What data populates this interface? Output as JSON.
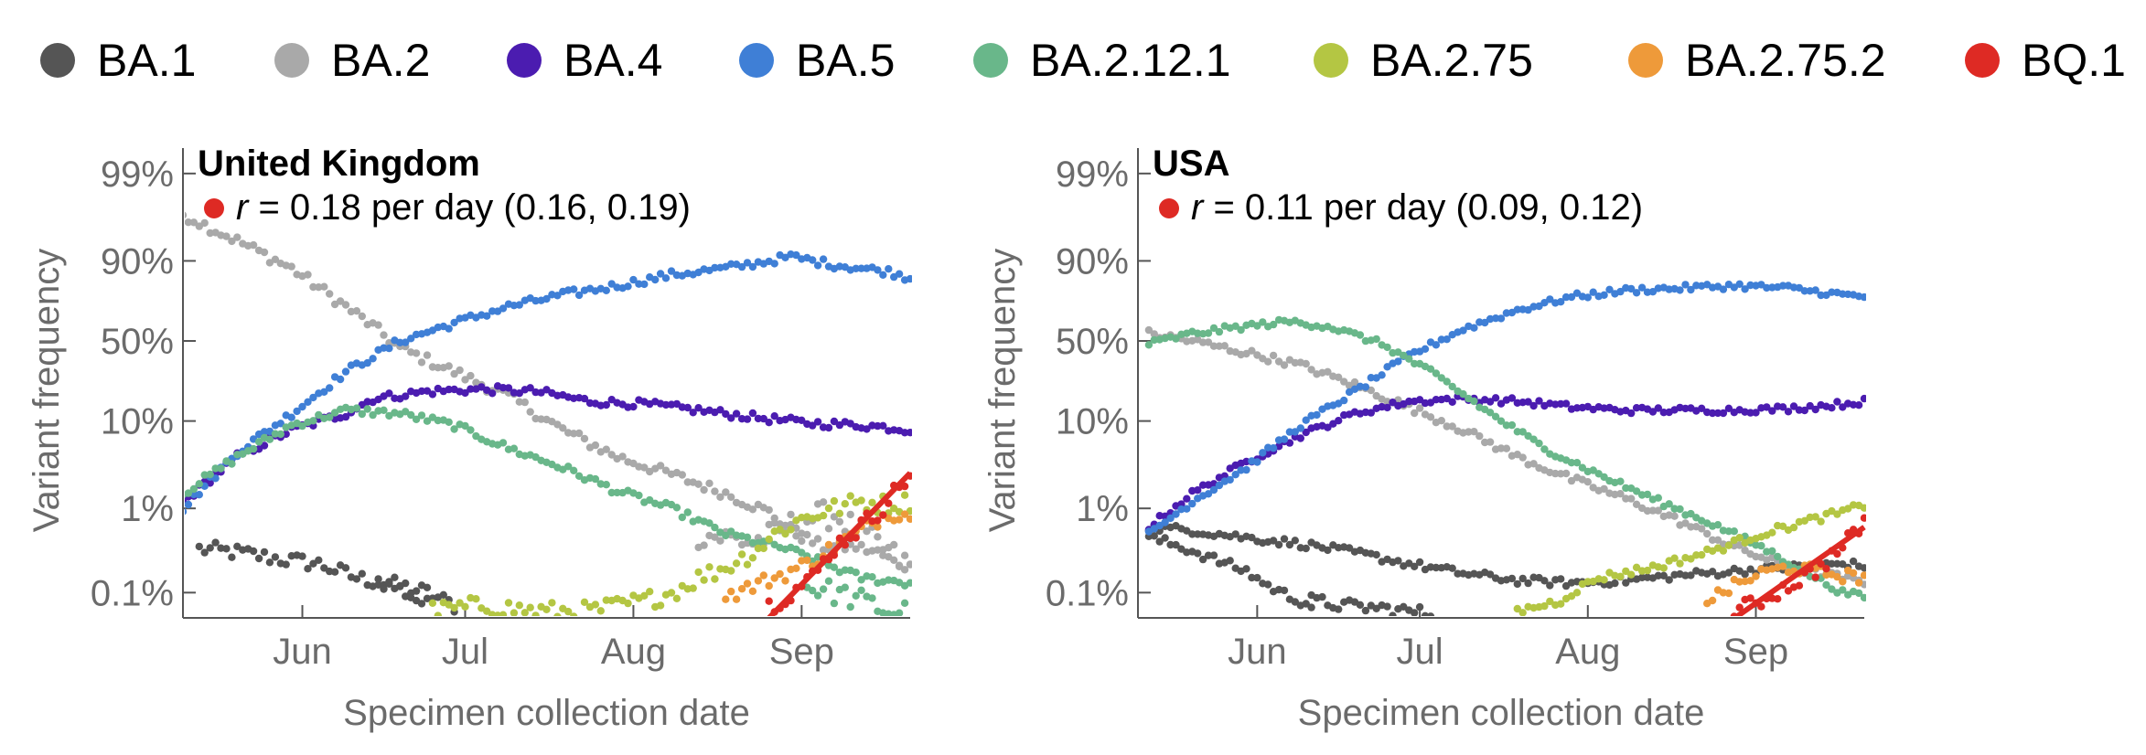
{
  "legend": [
    {
      "name": "BA.1",
      "color": "#555555"
    },
    {
      "name": "BA.2",
      "color": "#a9a9a9"
    },
    {
      "name": "BA.4",
      "color": "#4b1cb0"
    },
    {
      "name": "BA.5",
      "color": "#3f7fd6"
    },
    {
      "name": "BA.2.12.1",
      "color": "#69b78a"
    },
    {
      "name": "BA.2.75",
      "color": "#b4c643"
    },
    {
      "name": "BA.2.75.2",
      "color": "#ee9a3a"
    },
    {
      "name": "BQ.1",
      "color": "#de2a24"
    }
  ],
  "chart_data": [
    {
      "type": "scatter",
      "title": "United Kingdom",
      "annotation": {
        "symbol": "r",
        "text": " = 0.18 per day (0.16, 0.19)",
        "color": "#de2a24"
      },
      "xlabel": "Specimen collection date",
      "ylabel": "Variant frequency",
      "yscale": "logit",
      "x_ticks": [
        "Jun",
        "Jul",
        "Aug",
        "Sep"
      ],
      "y_ticks": [
        "99%",
        "90%",
        "50%",
        "10%",
        "1%",
        "0.1%"
      ],
      "x_range_days": [
        0,
        134
      ],
      "y_range_percent": [
        0.05,
        99.5
      ],
      "series": [
        {
          "name": "BA.1",
          "noise": 0.1,
          "points": [
            [
              3,
              0.33
            ],
            [
              10,
              0.3
            ],
            [
              18,
              0.25
            ],
            [
              25,
              0.22
            ],
            [
              32,
              0.15
            ],
            [
              40,
              0.12
            ],
            [
              45,
              0.1
            ],
            [
              50,
              0.07
            ]
          ]
        },
        {
          "name": "BA.1",
          "noise": 0.1,
          "points": [
            [
              36,
              0.14
            ],
            [
              40,
              0.11
            ],
            [
              45,
              0.07
            ]
          ]
        },
        {
          "name": "BA.2",
          "noise": 0.07,
          "points": [
            [
              0,
              97
            ],
            [
              10,
              94
            ],
            [
              20,
              88
            ],
            [
              30,
              72
            ],
            [
              35,
              60
            ],
            [
              40,
              45
            ],
            [
              50,
              30
            ],
            [
              60,
              18
            ],
            [
              70,
              8
            ],
            [
              80,
              4
            ],
            [
              90,
              2.5
            ],
            [
              100,
              1.5
            ],
            [
              108,
              0.9
            ],
            [
              113,
              0.5
            ],
            [
              118,
              0.35
            ],
            [
              124,
              0.35
            ],
            [
              128,
              0.3
            ],
            [
              131,
              0.23
            ],
            [
              134,
              0.2
            ]
          ]
        },
        {
          "name": "BA.2",
          "noise": 0.18,
          "points": [
            [
              95,
              0.5
            ],
            [
              100,
              0.45
            ],
            [
              105,
              0.4
            ],
            [
              110,
              0.5
            ],
            [
              113,
              0.7
            ],
            [
              117,
              0.8
            ],
            [
              120,
              0.85
            ],
            [
              125,
              0.5
            ],
            [
              130,
              0.3
            ],
            [
              134,
              0.2
            ]
          ]
        },
        {
          "name": "BA.4",
          "noise": 0.05,
          "points": [
            [
              0,
              1.2
            ],
            [
              10,
              4
            ],
            [
              20,
              8
            ],
            [
              30,
              12
            ],
            [
              35,
              17
            ],
            [
              45,
              20
            ],
            [
              55,
              21
            ],
            [
              65,
              20
            ],
            [
              75,
              16
            ],
            [
              85,
              15
            ],
            [
              95,
              13
            ],
            [
              105,
              11
            ],
            [
              115,
              9.5
            ],
            [
              125,
              9
            ],
            [
              130,
              8.5
            ],
            [
              134,
              8
            ]
          ]
        },
        {
          "name": "BA.5",
          "noise": 0.05,
          "points": [
            [
              0,
              1
            ],
            [
              10,
              4.5
            ],
            [
              20,
              12
            ],
            [
              30,
              30
            ],
            [
              40,
              50
            ],
            [
              50,
              62
            ],
            [
              60,
              72
            ],
            [
              70,
              78
            ],
            [
              80,
              82
            ],
            [
              90,
              86
            ],
            [
              100,
              88
            ],
            [
              108,
              90
            ],
            [
              112,
              91
            ],
            [
              120,
              89
            ],
            [
              130,
              87
            ],
            [
              134,
              85
            ]
          ]
        },
        {
          "name": "BA.2.12.1",
          "noise": 0.05,
          "points": [
            [
              0,
              1.5
            ],
            [
              10,
              4
            ],
            [
              20,
              9
            ],
            [
              30,
              13
            ],
            [
              40,
              12
            ],
            [
              50,
              9
            ],
            [
              60,
              5
            ],
            [
              70,
              3
            ],
            [
              80,
              1.6
            ],
            [
              90,
              1
            ],
            [
              100,
              0.5
            ],
            [
              110,
              0.35
            ],
            [
              115,
              0.27
            ],
            [
              120,
              0.2
            ],
            [
              125,
              0.15
            ],
            [
              134,
              0.13
            ]
          ]
        },
        {
          "name": "BA.2.12.1",
          "noise": 0.15,
          "points": [
            [
              115,
              0.12
            ],
            [
              120,
              0.1
            ],
            [
              125,
              0.08
            ],
            [
              130,
              0.06
            ],
            [
              134,
              0.06
            ]
          ]
        },
        {
          "name": "BA.2.75",
          "noise": 0.12,
          "points": [
            [
              46,
              0.06
            ],
            [
              55,
              0.07
            ],
            [
              65,
              0.06
            ],
            [
              75,
              0.06
            ],
            [
              85,
              0.08
            ],
            [
              90,
              0.1
            ],
            [
              95,
              0.15
            ],
            [
              100,
              0.2
            ],
            [
              105,
              0.3
            ],
            [
              110,
              0.55
            ],
            [
              115,
              0.8
            ],
            [
              120,
              1
            ],
            [
              125,
              1.2
            ],
            [
              130,
              1.1
            ],
            [
              134,
              1.2
            ]
          ]
        },
        {
          "name": "BA.2.75.2",
          "noise": 0.1,
          "points": [
            [
              100,
              0.09
            ],
            [
              105,
              0.12
            ],
            [
              110,
              0.16
            ],
            [
              115,
              0.22
            ],
            [
              120,
              0.35
            ],
            [
              125,
              0.55
            ],
            [
              130,
              0.9
            ],
            [
              134,
              0.85
            ]
          ]
        },
        {
          "name": "BQ.1",
          "noise": 0.12,
          "points": [
            [
              108,
              0.07
            ],
            [
              112,
              0.1
            ],
            [
              116,
              0.15
            ],
            [
              120,
              0.35
            ],
            [
              124,
              0.55
            ],
            [
              128,
              0.9
            ],
            [
              132,
              1.8
            ],
            [
              134,
              2.5
            ]
          ]
        }
      ],
      "fit": {
        "name": "BQ.1",
        "color": "#de2a24",
        "points": [
          [
            108,
            0.05
          ],
          [
            134,
            2.6
          ]
        ]
      }
    },
    {
      "type": "scatter",
      "title": "USA",
      "annotation": {
        "symbol": "r",
        "text": " = 0.11 per day (0.09, 0.12)",
        "color": "#de2a24"
      },
      "xlabel": "Specimen collection date",
      "ylabel": "Variant frequency",
      "yscale": "logit",
      "x_ticks": [
        "Jun",
        "Jul",
        "Aug",
        "Sep"
      ],
      "y_ticks": [
        "99%",
        "90%",
        "50%",
        "10%",
        "1%",
        "0.1%"
      ],
      "x_range_days": [
        0,
        134
      ],
      "y_range_percent": [
        0.05,
        99.5
      ],
      "series": [
        {
          "name": "BA.1",
          "noise": 0.06,
          "points": [
            [
              2,
              0.45
            ],
            [
              8,
              0.35
            ],
            [
              14,
              0.25
            ],
            [
              20,
              0.18
            ],
            [
              24,
              0.12
            ],
            [
              28,
              0.09
            ],
            [
              32,
              0.07
            ]
          ]
        },
        {
          "name": "BA.1",
          "noise": 0.08,
          "points": [
            [
              32,
              0.08
            ],
            [
              38,
              0.07
            ],
            [
              45,
              0.065
            ],
            [
              50,
              0.06
            ],
            [
              55,
              0.055
            ]
          ]
        },
        {
          "name": "BA.1",
          "noise": 0.05,
          "points": [
            [
              2,
              0.6
            ],
            [
              10,
              0.55
            ],
            [
              20,
              0.45
            ],
            [
              30,
              0.38
            ],
            [
              40,
              0.3
            ],
            [
              50,
              0.22
            ],
            [
              60,
              0.17
            ],
            [
              70,
              0.14
            ],
            [
              80,
              0.13
            ],
            [
              90,
              0.14
            ],
            [
              100,
              0.16
            ],
            [
              110,
              0.18
            ],
            [
              120,
              0.2
            ],
            [
              130,
              0.22
            ],
            [
              134,
              0.21
            ]
          ]
        },
        {
          "name": "BA.2",
          "noise": 0.05,
          "points": [
            [
              2,
              55
            ],
            [
              10,
              50
            ],
            [
              20,
              42
            ],
            [
              30,
              34
            ],
            [
              40,
              23
            ],
            [
              50,
              14
            ],
            [
              60,
              8
            ],
            [
              70,
              4
            ],
            [
              80,
              2.2
            ],
            [
              90,
              1.3
            ],
            [
              100,
              0.7
            ],
            [
              110,
              0.35
            ],
            [
              120,
              0.2
            ],
            [
              130,
              0.15
            ],
            [
              134,
              0.13
            ]
          ]
        },
        {
          "name": "BA.4",
          "noise": 0.04,
          "points": [
            [
              2,
              0.6
            ],
            [
              10,
              1.5
            ],
            [
              20,
              3.5
            ],
            [
              30,
              7
            ],
            [
              40,
              12
            ],
            [
              50,
              16
            ],
            [
              60,
              17
            ],
            [
              70,
              16
            ],
            [
              80,
              14
            ],
            [
              90,
              13
            ],
            [
              100,
              13
            ],
            [
              110,
              13
            ],
            [
              120,
              13.5
            ],
            [
              130,
              15
            ],
            [
              134,
              16
            ]
          ]
        },
        {
          "name": "BA.5",
          "noise": 0.04,
          "points": [
            [
              2,
              0.5
            ],
            [
              10,
              1.2
            ],
            [
              20,
              3
            ],
            [
              30,
              9
            ],
            [
              40,
              20
            ],
            [
              50,
              40
            ],
            [
              60,
              58
            ],
            [
              70,
              70
            ],
            [
              80,
              77
            ],
            [
              90,
              80
            ],
            [
              100,
              81
            ],
            [
              110,
              82
            ],
            [
              120,
              81
            ],
            [
              130,
              78
            ],
            [
              134,
              77
            ]
          ]
        },
        {
          "name": "BA.2.12.1",
          "noise": 0.04,
          "points": [
            [
              2,
              48
            ],
            [
              10,
              55
            ],
            [
              20,
              60
            ],
            [
              28,
              63
            ],
            [
              35,
              60
            ],
            [
              45,
              48
            ],
            [
              55,
              28
            ],
            [
              65,
              12
            ],
            [
              75,
              5
            ],
            [
              85,
              2.5
            ],
            [
              95,
              1.3
            ],
            [
              105,
              0.7
            ],
            [
              115,
              0.35
            ],
            [
              125,
              0.15
            ],
            [
              130,
              0.1
            ],
            [
              134,
              0.09
            ]
          ]
        },
        {
          "name": "BA.2.75",
          "noise": 0.05,
          "points": [
            [
              70,
              0.06
            ],
            [
              78,
              0.08
            ],
            [
              80,
              0.1
            ],
            [
              85,
              0.15
            ],
            [
              95,
              0.2
            ],
            [
              105,
              0.3
            ],
            [
              115,
              0.5
            ],
            [
              125,
              0.75
            ],
            [
              130,
              0.9
            ],
            [
              134,
              1.1
            ]
          ]
        },
        {
          "name": "BA.2.75.2",
          "noise": 0.08,
          "points": [
            [
              105,
              0.08
            ],
            [
              110,
              0.12
            ],
            [
              115,
              0.17
            ],
            [
              120,
              0.2
            ],
            [
              125,
              0.18
            ],
            [
              130,
              0.16
            ],
            [
              134,
              0.15
            ]
          ]
        },
        {
          "name": "BQ.1",
          "noise": 0.1,
          "points": [
            [
              110,
              0.06
            ],
            [
              115,
              0.08
            ],
            [
              120,
              0.12
            ],
            [
              125,
              0.18
            ],
            [
              130,
              0.35
            ],
            [
              134,
              0.7
            ]
          ]
        }
      ],
      "fit": {
        "name": "BQ.1",
        "color": "#de2a24",
        "points": [
          [
            108,
            0.04
          ],
          [
            134,
            0.6
          ]
        ]
      }
    }
  ]
}
